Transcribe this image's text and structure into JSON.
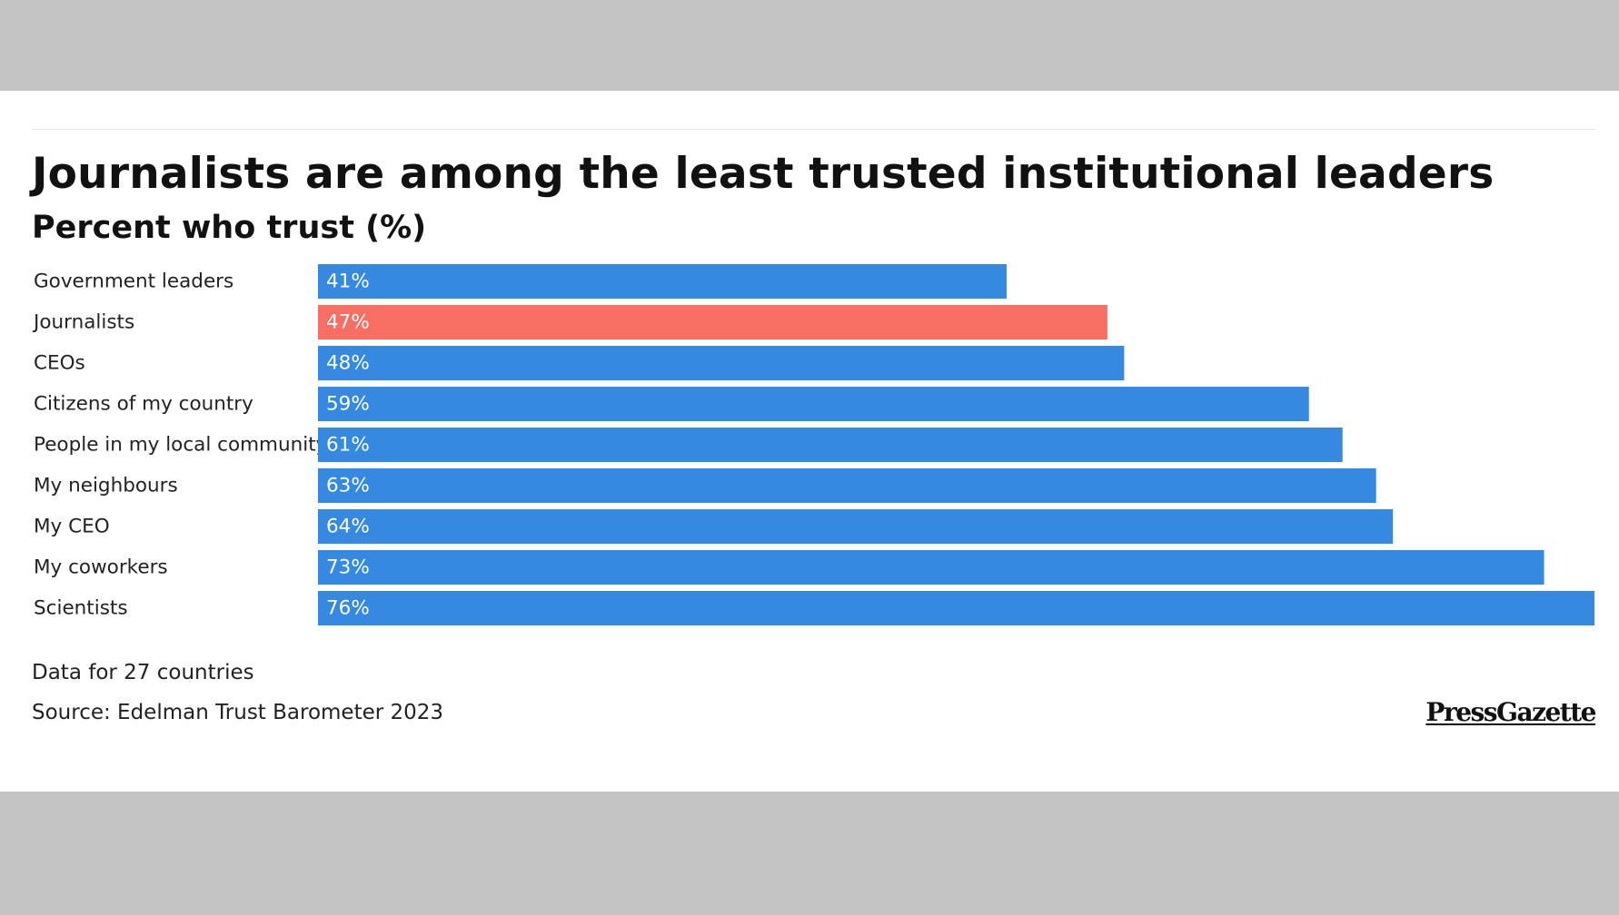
{
  "header": {
    "title": "Journalists are among the least trusted institutional leaders",
    "subtitle": "Percent who trust (%)"
  },
  "footer": {
    "note": "Data for 27 countries",
    "source": "Source: Edelman Trust Barometer 2023",
    "logo": "PressGazette"
  },
  "chart_data": {
    "type": "bar",
    "orientation": "horizontal",
    "title": "Journalists are among the least trusted institutional leaders",
    "subtitle": "Percent who trust (%)",
    "categories": [
      "Government leaders",
      "Journalists",
      "CEOs",
      "Citizens of my country",
      "People in my local community",
      "My neighbours",
      "My CEO",
      "My coworkers",
      "Scientists"
    ],
    "values": [
      41,
      47,
      48,
      59,
      61,
      63,
      64,
      73,
      76
    ],
    "value_labels": [
      "41%",
      "47%",
      "48%",
      "59%",
      "61%",
      "63%",
      "64%",
      "73%",
      "76%"
    ],
    "highlight_index": 1,
    "colors": {
      "default": "#3689e0",
      "highlight": "#f76f63"
    },
    "xlim": [
      0,
      76
    ],
    "grid": false,
    "legend": "none"
  }
}
